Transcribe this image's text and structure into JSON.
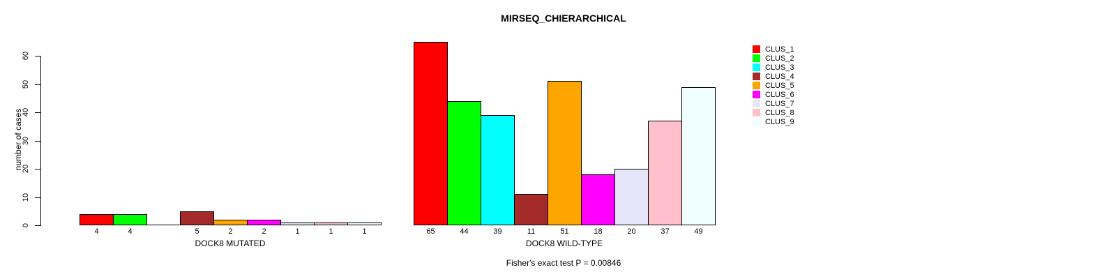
{
  "chart_data": {
    "type": "bar",
    "title": "MIRSEQ_CHIERARCHICAL",
    "ylabel": "number of cases",
    "ylim": [
      0,
      60
    ],
    "ytick_step": 10,
    "grid": false,
    "legend_position": "right",
    "categories": [
      "DOCK8 MUTATED",
      "DOCK8 WILD-TYPE"
    ],
    "series": [
      {
        "name": "CLUS_1",
        "color": "#FF0000",
        "values": [
          4,
          65
        ]
      },
      {
        "name": "CLUS_2",
        "color": "#00FF00",
        "values": [
          4,
          44
        ]
      },
      {
        "name": "CLUS_3",
        "color": "#00FFFF",
        "values": [
          0,
          39
        ]
      },
      {
        "name": "CLUS_4",
        "color": "#A52A2A",
        "values": [
          5,
          11
        ]
      },
      {
        "name": "CLUS_5",
        "color": "#FFA500",
        "values": [
          2,
          51
        ]
      },
      {
        "name": "CLUS_6",
        "color": "#FF00FF",
        "values": [
          2,
          18
        ]
      },
      {
        "name": "CLUS_7",
        "color": "#E6E6FA",
        "values": [
          1,
          20
        ]
      },
      {
        "name": "CLUS_8",
        "color": "#FFC0CB",
        "values": [
          1,
          37
        ]
      },
      {
        "name": "CLUS_9",
        "color": "#F0FFFF",
        "values": [
          1,
          49
        ]
      }
    ],
    "bar_value_labels_shown_when_zero": false,
    "note": "Fisher's exact test P = 0.00846"
  }
}
